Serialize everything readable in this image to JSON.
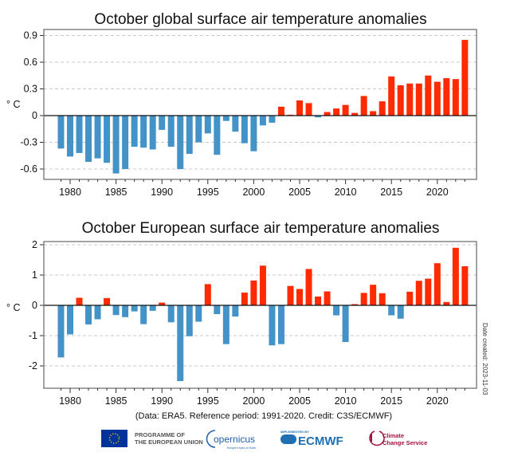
{
  "chart_data": [
    {
      "type": "bar",
      "title": "October global surface air temperature anomalies",
      "ylabel": "° C",
      "xlabel": "",
      "ylim": [
        -0.7,
        0.95
      ],
      "yticks": [
        "0.9",
        "0.6",
        "0.3",
        "0",
        "-0.3",
        "-0.6"
      ],
      "ytick_values": [
        0.9,
        0.6,
        0.3,
        0,
        -0.3,
        -0.6
      ],
      "xticks": [
        "1980",
        "1985",
        "1990",
        "1995",
        "2000",
        "2005",
        "2010",
        "2015",
        "2020"
      ],
      "grid": true,
      "positive_color": "#ff2a00",
      "negative_color": "#4393c8",
      "x": [
        1979,
        1980,
        1981,
        1982,
        1983,
        1984,
        1985,
        1986,
        1987,
        1988,
        1989,
        1990,
        1991,
        1992,
        1993,
        1994,
        1995,
        1996,
        1997,
        1998,
        1999,
        2000,
        2001,
        2002,
        2003,
        2004,
        2005,
        2006,
        2007,
        2008,
        2009,
        2010,
        2011,
        2012,
        2013,
        2014,
        2015,
        2016,
        2017,
        2018,
        2019,
        2020,
        2021,
        2022,
        2023
      ],
      "values": [
        -0.37,
        -0.46,
        -0.42,
        -0.52,
        -0.48,
        -0.53,
        -0.65,
        -0.6,
        -0.35,
        -0.36,
        -0.38,
        -0.16,
        -0.35,
        -0.6,
        -0.43,
        -0.3,
        -0.2,
        -0.44,
        -0.06,
        -0.18,
        -0.31,
        -0.4,
        -0.11,
        -0.08,
        0.1,
        0.01,
        0.17,
        0.14,
        -0.02,
        0.04,
        0.08,
        0.12,
        0.03,
        0.22,
        0.05,
        0.16,
        0.44,
        0.34,
        0.36,
        0.36,
        0.45,
        0.38,
        0.42,
        0.41,
        0.85
      ]
    },
    {
      "type": "bar",
      "title": "October European surface air temperature anomalies",
      "ylabel": "° C",
      "xlabel": "",
      "ylim": [
        -2.75,
        2.2
      ],
      "yticks": [
        "2",
        "1",
        "0",
        "-1",
        "-2"
      ],
      "ytick_values": [
        2,
        1,
        0,
        -1,
        -2
      ],
      "xticks": [
        "1980",
        "1985",
        "1990",
        "1995",
        "2000",
        "2005",
        "2010",
        "2015",
        "2020"
      ],
      "grid": true,
      "positive_color": "#ff2a00",
      "negative_color": "#4393c8",
      "x": [
        1979,
        1980,
        1981,
        1982,
        1983,
        1984,
        1985,
        1986,
        1987,
        1988,
        1989,
        1990,
        1991,
        1992,
        1993,
        1994,
        1995,
        1996,
        1997,
        1998,
        1999,
        2000,
        2001,
        2002,
        2003,
        2004,
        2005,
        2006,
        2007,
        2008,
        2009,
        2010,
        2011,
        2012,
        2013,
        2014,
        2015,
        2016,
        2017,
        2018,
        2019,
        2020,
        2021,
        2022,
        2023
      ],
      "values": [
        -1.72,
        -0.96,
        0.25,
        -0.63,
        -0.46,
        0.24,
        -0.32,
        -0.39,
        -0.2,
        -0.62,
        -0.18,
        0.09,
        -0.56,
        -2.5,
        -1.02,
        -0.54,
        0.7,
        -0.29,
        -1.28,
        -0.37,
        0.42,
        0.82,
        1.31,
        -1.32,
        -1.28,
        0.64,
        0.54,
        1.2,
        0.29,
        0.46,
        -0.33,
        -1.21,
        0.04,
        0.41,
        0.68,
        0.4,
        -0.33,
        -0.44,
        0.45,
        0.81,
        0.88,
        1.39,
        0.11,
        1.9,
        1.29
      ]
    }
  ],
  "credit": "(Data: ERA5.  Reference period: 1991-2020.  Credit: C3S/ECMWF)",
  "date_created": "Date created: 2023-11-03",
  "logos": {
    "eu": "PROGRAMME OF THE EUROPEAN UNION",
    "eu_line1": "PROGRAMME OF",
    "eu_line2": "THE EUROPEAN UNION",
    "copernicus": "opernicus",
    "copernicus_tagline": "Europe's eyes on Earth",
    "ecmwf_small": "IMPLEMENTED BY",
    "ecmwf": "ECMWF",
    "c3s_line1": "Climate",
    "c3s_line2": "Change Service"
  }
}
